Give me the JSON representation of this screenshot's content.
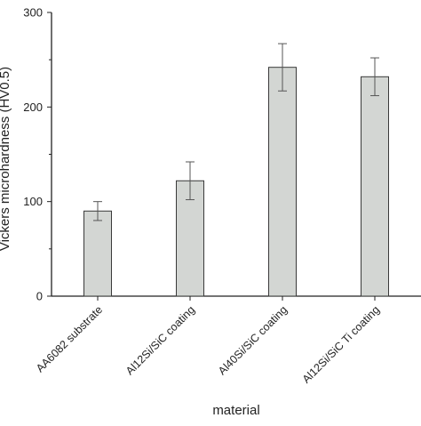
{
  "chart_data": {
    "type": "bar",
    "title": "",
    "xlabel": "material",
    "ylabel": "Vickers microhardness (HV0.5)",
    "categories": [
      "AA6082 substrate",
      "Al12Si/SiC coating",
      "Al40Si/SiC coating",
      "Al12Si/SiC Ti coating"
    ],
    "values": [
      90,
      122,
      242,
      232
    ],
    "errors": [
      10,
      20,
      25,
      20
    ],
    "ylim": [
      0,
      300
    ],
    "yticks": [
      0,
      100,
      200,
      300
    ],
    "grid": false,
    "legend": "none",
    "colors": {
      "bar_fill": "#d3d6d3",
      "bar_stroke": "#3a3a3a",
      "axis": "#222222",
      "error_bar": "#555555"
    }
  }
}
